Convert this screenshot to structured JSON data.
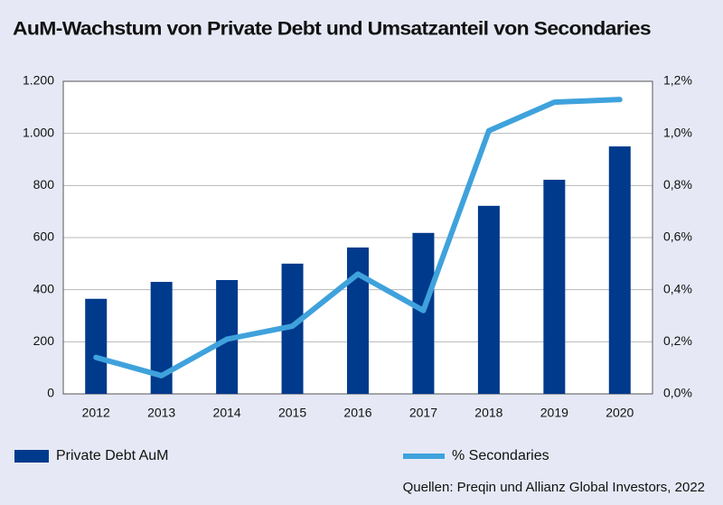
{
  "chart_data": {
    "type": "combo",
    "title": "AuM-Wachstum von Private Debt und Umsatzanteil von Secondaries",
    "source": "Quellen: Preqin und Allianz Global Investors, 2022",
    "categories": [
      "2012",
      "2013",
      "2014",
      "2015",
      "2016",
      "2017",
      "2018",
      "2019",
      "2020"
    ],
    "series": [
      {
        "name": "Private Debt AuM",
        "color": "#003a8c",
        "values": [
          365,
          430,
          437,
          500,
          562,
          618,
          722,
          822,
          950
        ]
      },
      {
        "name": "% Secondaries",
        "color": "#3fa2dc",
        "axis": "y2",
        "values": [
          0.14,
          0.07,
          0.21,
          0.26,
          0.46,
          0.32,
          1.01,
          1.12,
          1.13
        ]
      }
    ],
    "ylim": [
      0,
      1200
    ],
    "yticks": [
      0,
      200,
      400,
      600,
      800,
      {
        "value": 1000,
        "label": "1.000"
      },
      {
        "value": 1200,
        "label": "1.200"
      }
    ],
    "y2lim": [
      0,
      1.2
    ],
    "y2ticks": [
      {
        "value": 0,
        "label": "0,0%"
      },
      {
        "value": 0.2,
        "label": "0,2%"
      },
      {
        "value": 0.4,
        "label": "0,4%"
      },
      {
        "value": 0.6,
        "label": "0,6%"
      },
      {
        "value": 0.8,
        "label": "0,8%"
      },
      {
        "value": 1.0,
        "label": "1,0%"
      },
      {
        "value": 1.2,
        "label": "1,2%"
      }
    ],
    "grid": true
  }
}
